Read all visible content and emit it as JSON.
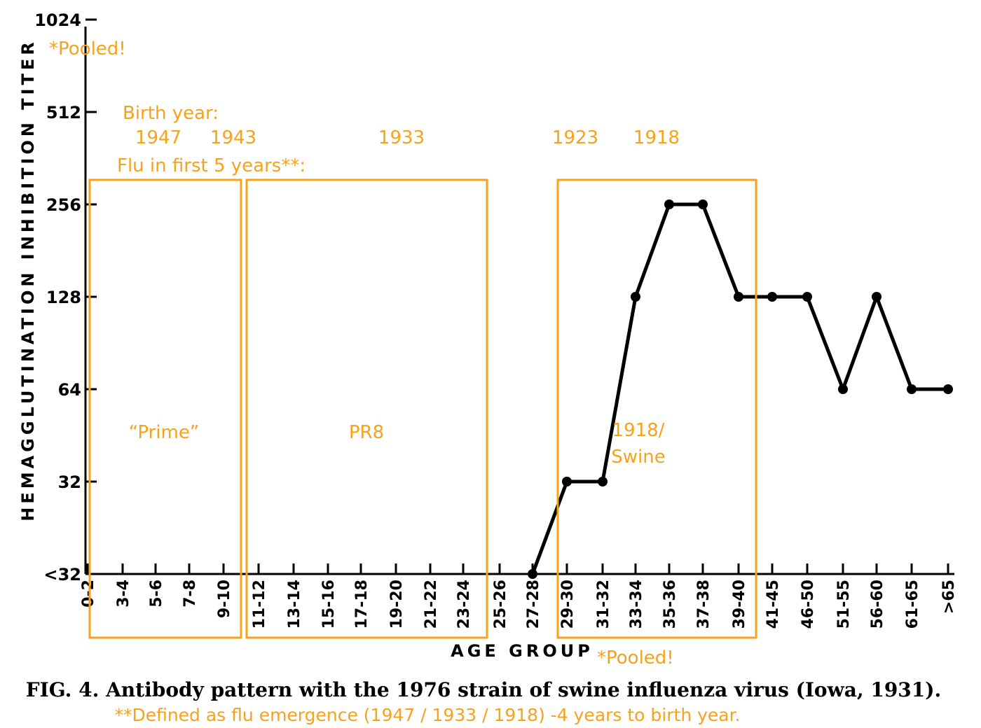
{
  "chart_data": {
    "type": "line",
    "ylabel": "HEMAGGLUTINATION INHIBITION TITER",
    "xlabel": "AGE GROUP",
    "y_scale": "log2",
    "y_ticks": [
      "<32",
      "32",
      "64",
      "128",
      "256",
      "512",
      "1024"
    ],
    "categories": [
      "0-2",
      "3-4",
      "5-6",
      "7-8",
      "9-10",
      "11-12",
      "13-14",
      "15-16",
      "17-18",
      "19-20",
      "21-22",
      "23-24",
      "25-26",
      "27-28",
      "29-30",
      "31-32",
      "33-34",
      "35-36",
      "37-38",
      "39-40",
      "41-45",
      "46-50",
      "51-55",
      "56-60",
      "61-65",
      ">65"
    ],
    "series": [
      {
        "values": [
          null,
          null,
          null,
          null,
          null,
          null,
          null,
          null,
          null,
          null,
          null,
          null,
          null,
          "<32",
          32,
          32,
          128,
          256,
          256,
          128,
          128,
          128,
          64,
          128,
          64,
          64
        ]
      }
    ],
    "annotations": {
      "pooled_top": "*Pooled!",
      "pooled_bottom": "*Pooled!",
      "birth_year_label": "Birth year:",
      "birth_years": [
        "1947",
        "1943",
        "1933",
        "1923",
        "1918"
      ],
      "flu_label": "Flu in first 5 years**:",
      "box_labels": [
        "“Prime”",
        "PR8",
        "1918/",
        "Swine"
      ]
    }
  },
  "caption": "FIG. 4. Antibody pattern with the 1976 strain of swine influenza virus (Iowa, 1931).",
  "footnote": "**Defined as flu emergence (1947 / 1933 / 1918) -4 years to birth year.",
  "colors": {
    "line": "#000000",
    "highlight": "#f7a21b"
  }
}
